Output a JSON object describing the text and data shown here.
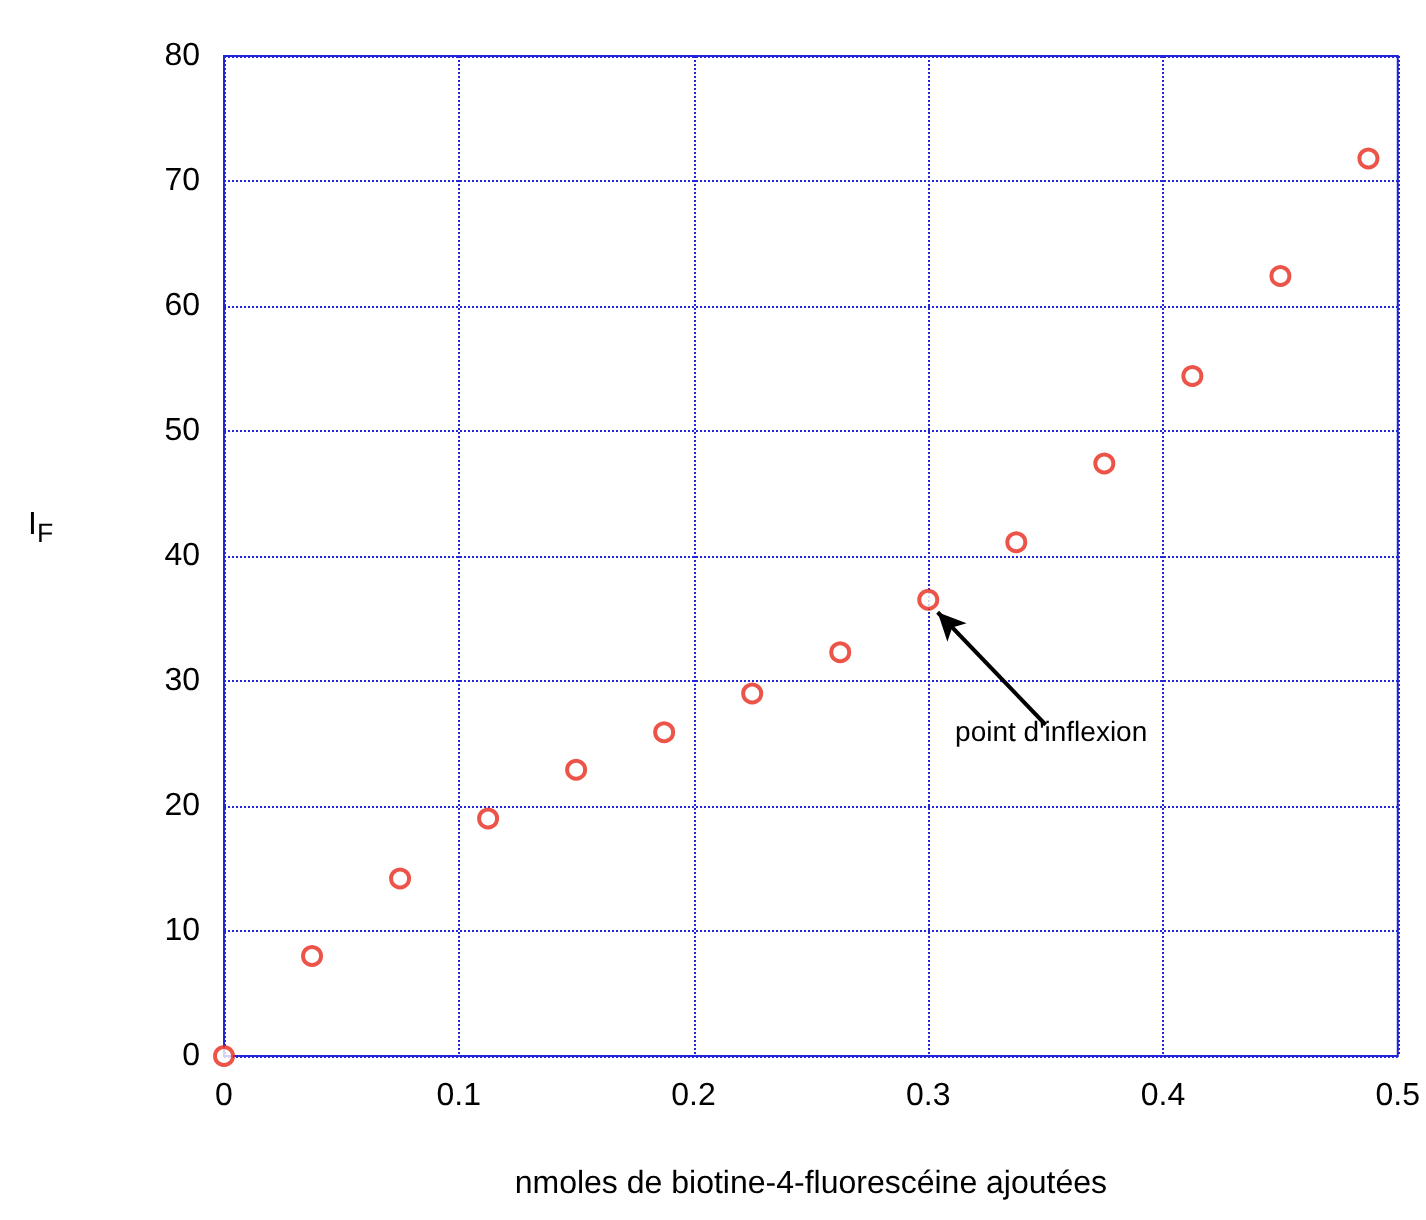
{
  "chart_data": {
    "type": "scatter",
    "xlabel": "nmoles de biotine-4-fluorescéine ajoutées",
    "ylabel": "I$_{F}$",
    "x": [
      0,
      0.0375,
      0.075,
      0.1125,
      0.15,
      0.1875,
      0.225,
      0.2625,
      0.3,
      0.3375,
      0.375,
      0.4125,
      0.45,
      0.4875
    ],
    "series": [
      {
        "color": "#e8291c",
        "values": [
          0,
          8,
          14.2,
          19,
          22.9,
          25.9,
          29,
          32.3,
          36.5,
          41.1,
          47.4,
          54.4,
          62.4,
          71.8
        ]
      }
    ],
    "xlim": [
      0,
      0.5
    ],
    "xticks": [
      0,
      0.1,
      0.2,
      0.3,
      0.4,
      0.5
    ],
    "ylim": [
      0,
      80
    ],
    "yticks": [
      0,
      10,
      20,
      30,
      40,
      50,
      60,
      70,
      80
    ],
    "grid": true,
    "marker": "circle",
    "annotations": [
      {
        "text": "point d'inflexion",
        "x": 0.3,
        "y": 36.5
      }
    ]
  }
}
